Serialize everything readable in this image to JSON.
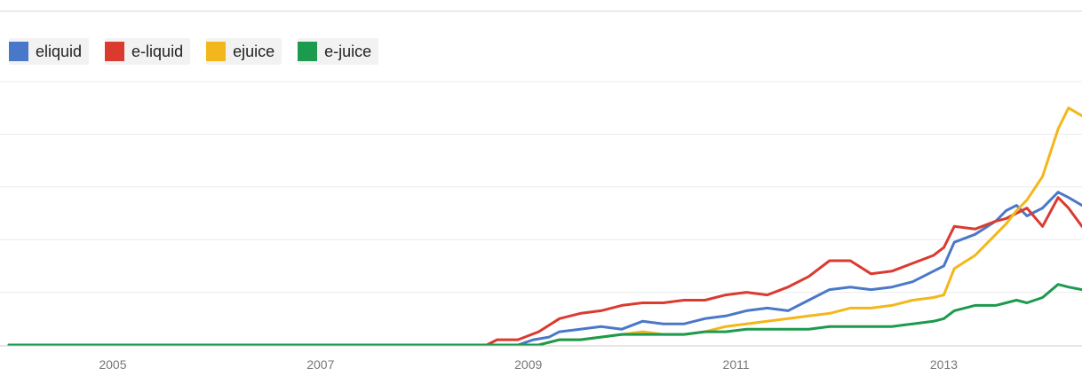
{
  "colors": {
    "eliquid": "#4a78c8",
    "e-liquid": "#db3a2f",
    "ejuice": "#f3b71b",
    "e-juice": "#1c9a4d",
    "grid": "#ebebeb",
    "axis": "#cccccc"
  },
  "legend": [
    {
      "label": "eliquid",
      "color": "#4a78c8"
    },
    {
      "label": "e-liquid",
      "color": "#db3a2f"
    },
    {
      "label": "ejuice",
      "color": "#f3b71b"
    },
    {
      "label": "e-juice",
      "color": "#1c9a4d"
    }
  ],
  "chart_data": {
    "type": "line",
    "title": "",
    "xlabel": "",
    "ylabel": "",
    "xlim": [
      2004.0,
      2014.33
    ],
    "ylim": [
      0,
      100
    ],
    "grid": true,
    "legend_position": "top-left",
    "x_ticks": [
      "2005",
      "2007",
      "2009",
      "2011",
      "2013"
    ],
    "series": [
      {
        "name": "eliquid",
        "color": "#4a78c8",
        "points": [
          [
            2004.0,
            0
          ],
          [
            2008.9,
            0
          ],
          [
            2009.05,
            2
          ],
          [
            2009.2,
            3
          ],
          [
            2009.3,
            5
          ],
          [
            2009.5,
            6
          ],
          [
            2009.7,
            7
          ],
          [
            2009.9,
            6
          ],
          [
            2010.1,
            9
          ],
          [
            2010.3,
            8
          ],
          [
            2010.5,
            8
          ],
          [
            2010.7,
            10
          ],
          [
            2010.9,
            11
          ],
          [
            2011.1,
            13
          ],
          [
            2011.3,
            14
          ],
          [
            2011.5,
            13
          ],
          [
            2011.7,
            17
          ],
          [
            2011.9,
            21
          ],
          [
            2012.1,
            22
          ],
          [
            2012.3,
            21
          ],
          [
            2012.5,
            22
          ],
          [
            2012.7,
            24
          ],
          [
            2012.9,
            28
          ],
          [
            2013.0,
            30
          ],
          [
            2013.1,
            39
          ],
          [
            2013.3,
            42
          ],
          [
            2013.5,
            47
          ],
          [
            2013.6,
            51
          ],
          [
            2013.7,
            53
          ],
          [
            2013.8,
            49
          ],
          [
            2013.95,
            52
          ],
          [
            2014.1,
            58
          ],
          [
            2014.2,
            56
          ],
          [
            2014.33,
            53
          ]
        ]
      },
      {
        "name": "e-liquid",
        "color": "#db3a2f",
        "points": [
          [
            2004.0,
            0
          ],
          [
            2008.6,
            0
          ],
          [
            2008.7,
            2
          ],
          [
            2008.9,
            2
          ],
          [
            2009.1,
            5
          ],
          [
            2009.3,
            10
          ],
          [
            2009.5,
            12
          ],
          [
            2009.7,
            13
          ],
          [
            2009.9,
            15
          ],
          [
            2010.1,
            16
          ],
          [
            2010.3,
            16
          ],
          [
            2010.5,
            17
          ],
          [
            2010.7,
            17
          ],
          [
            2010.9,
            19
          ],
          [
            2011.1,
            20
          ],
          [
            2011.3,
            19
          ],
          [
            2011.5,
            22
          ],
          [
            2011.7,
            26
          ],
          [
            2011.9,
            32
          ],
          [
            2012.1,
            32
          ],
          [
            2012.3,
            27
          ],
          [
            2012.5,
            28
          ],
          [
            2012.7,
            31
          ],
          [
            2012.9,
            34
          ],
          [
            2013.0,
            37
          ],
          [
            2013.1,
            45
          ],
          [
            2013.3,
            44
          ],
          [
            2013.5,
            47
          ],
          [
            2013.6,
            48
          ],
          [
            2013.7,
            50
          ],
          [
            2013.8,
            52
          ],
          [
            2013.95,
            45
          ],
          [
            2014.1,
            56
          ],
          [
            2014.2,
            52
          ],
          [
            2014.33,
            45
          ]
        ]
      },
      {
        "name": "ejuice",
        "color": "#f3b71b",
        "points": [
          [
            2004.0,
            0
          ],
          [
            2009.1,
            0
          ],
          [
            2009.3,
            2
          ],
          [
            2009.5,
            2
          ],
          [
            2009.7,
            3
          ],
          [
            2009.9,
            4
          ],
          [
            2010.1,
            5
          ],
          [
            2010.3,
            4
          ],
          [
            2010.5,
            4
          ],
          [
            2010.7,
            5
          ],
          [
            2010.9,
            7
          ],
          [
            2011.1,
            8
          ],
          [
            2011.3,
            9
          ],
          [
            2011.5,
            10
          ],
          [
            2011.7,
            11
          ],
          [
            2011.9,
            12
          ],
          [
            2012.1,
            14
          ],
          [
            2012.3,
            14
          ],
          [
            2012.5,
            15
          ],
          [
            2012.7,
            17
          ],
          [
            2012.9,
            18
          ],
          [
            2013.0,
            19
          ],
          [
            2013.1,
            29
          ],
          [
            2013.3,
            34
          ],
          [
            2013.5,
            42
          ],
          [
            2013.6,
            46
          ],
          [
            2013.7,
            51
          ],
          [
            2013.8,
            55
          ],
          [
            2013.95,
            64
          ],
          [
            2014.1,
            82
          ],
          [
            2014.2,
            90
          ],
          [
            2014.33,
            87
          ]
        ]
      },
      {
        "name": "e-juice",
        "color": "#1c9a4d",
        "points": [
          [
            2004.0,
            0
          ],
          [
            2009.1,
            0
          ],
          [
            2009.3,
            2
          ],
          [
            2009.5,
            2
          ],
          [
            2009.7,
            3
          ],
          [
            2009.9,
            4
          ],
          [
            2010.1,
            4
          ],
          [
            2010.3,
            4
          ],
          [
            2010.5,
            4
          ],
          [
            2010.7,
            5
          ],
          [
            2010.9,
            5
          ],
          [
            2011.1,
            6
          ],
          [
            2011.3,
            6
          ],
          [
            2011.5,
            6
          ],
          [
            2011.7,
            6
          ],
          [
            2011.9,
            7
          ],
          [
            2012.1,
            7
          ],
          [
            2012.3,
            7
          ],
          [
            2012.5,
            7
          ],
          [
            2012.7,
            8
          ],
          [
            2012.9,
            9
          ],
          [
            2013.0,
            10
          ],
          [
            2013.1,
            13
          ],
          [
            2013.3,
            15
          ],
          [
            2013.5,
            15
          ],
          [
            2013.6,
            16
          ],
          [
            2013.7,
            17
          ],
          [
            2013.8,
            16
          ],
          [
            2013.95,
            18
          ],
          [
            2014.1,
            23
          ],
          [
            2014.2,
            22
          ],
          [
            2014.33,
            21
          ]
        ]
      }
    ]
  }
}
